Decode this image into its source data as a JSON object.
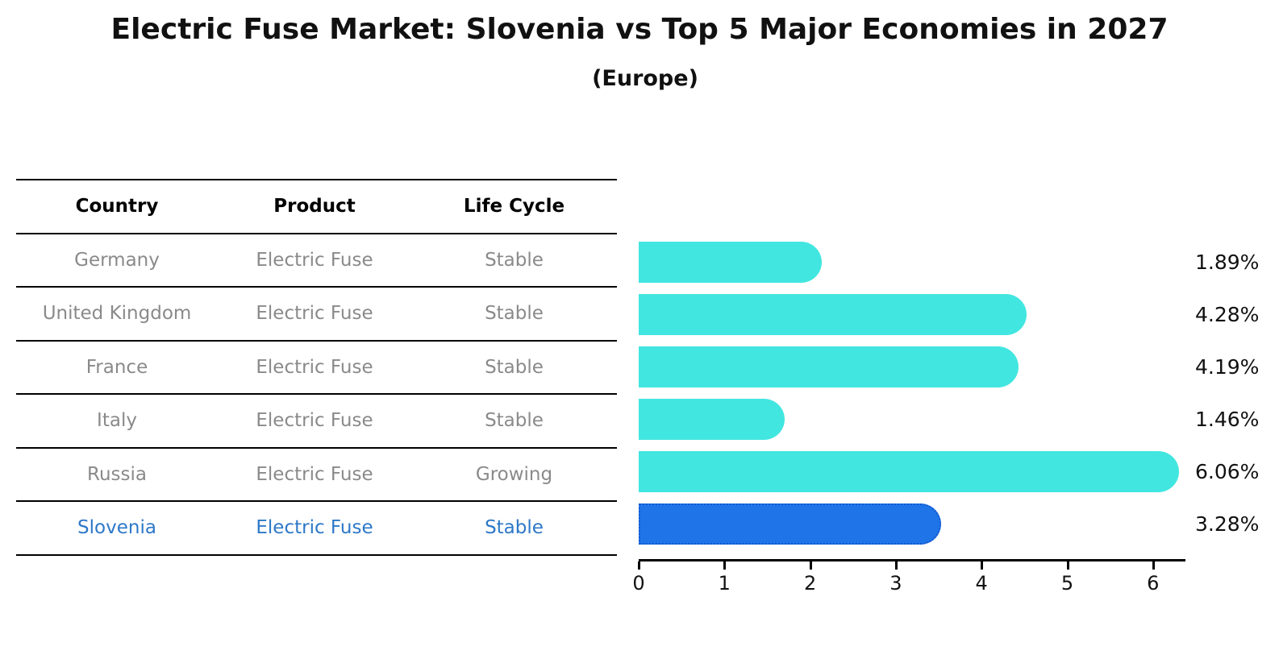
{
  "title": "Electric Fuse Market: Slovenia vs Top 5 Major Economies in 2027",
  "subtitle": "(Europe)",
  "table": {
    "headers": [
      "Country",
      "Product",
      "Life Cycle"
    ],
    "rows": [
      {
        "country": "Germany",
        "product": "Electric Fuse",
        "life_cycle": "Stable",
        "highlighted": false
      },
      {
        "country": "United Kingdom",
        "product": "Electric Fuse",
        "life_cycle": "Stable",
        "highlighted": false
      },
      {
        "country": "France",
        "product": "Electric Fuse",
        "life_cycle": "Stable",
        "highlighted": false
      },
      {
        "country": "Italy",
        "product": "Electric Fuse",
        "life_cycle": "Stable",
        "highlighted": false
      },
      {
        "country": "Russia",
        "product": "Electric Fuse",
        "life_cycle": "Growing",
        "highlighted": false
      },
      {
        "country": "Slovenia",
        "product": "Electric Fuse",
        "life_cycle": "Stable",
        "highlighted": true
      }
    ]
  },
  "chart_data": {
    "type": "bar",
    "orientation": "horizontal",
    "title": "Electric Fuse Market: Slovenia vs Top 5 Major Economies in 2027",
    "subtitle": "(Europe)",
    "categories": [
      "Germany",
      "United Kingdom",
      "France",
      "Italy",
      "Russia",
      "Slovenia"
    ],
    "values": [
      1.89,
      4.28,
      4.19,
      1.46,
      6.06,
      3.28
    ],
    "value_labels": [
      "1.89%",
      "4.28%",
      "4.19%",
      "1.46%",
      "6.06%",
      "3.28%"
    ],
    "x_ticks": [
      0,
      1,
      2,
      3,
      4,
      5,
      6
    ],
    "x_tick_labels": [
      "0",
      "1",
      "2",
      "3",
      "4",
      "5",
      "6"
    ],
    "xlim": [
      0,
      6.4
    ],
    "grid": false,
    "legend": false,
    "highlight_category": "Slovenia",
    "bar_color": "#42e6e0",
    "highlight_bar_color": "#1f75e8",
    "highlight_border_color": "#1256ce",
    "row_text_color": "#8a8a8a",
    "highlight_text_color": "#2d78c8"
  }
}
